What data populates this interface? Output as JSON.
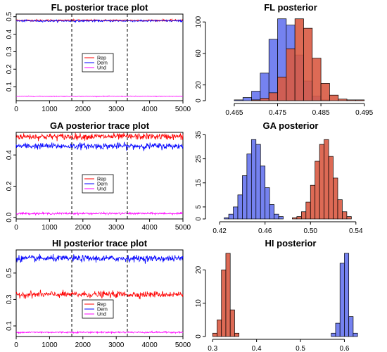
{
  "chart_data": [
    {
      "type": "line",
      "title": "FL posterior trace plot",
      "x_ticks": [
        0,
        1000,
        2000,
        3000,
        4000,
        5000
      ],
      "y_ticks": [
        0.1,
        0.2,
        0.3,
        0.4,
        0.5
      ],
      "xlim": [
        0,
        5000
      ],
      "ylim": [
        0.02,
        0.515
      ],
      "vlines": [
        1667,
        3333
      ],
      "legend": {
        "position": "center",
        "entries": [
          "Rep",
          "Dem",
          "Und"
        ]
      },
      "series": [
        {
          "name": "Rep",
          "color": "#ff0000",
          "mean": 0.479,
          "sd": 0.0025
        },
        {
          "name": "Dem",
          "color": "#0000ff",
          "mean": 0.476,
          "sd": 0.0025
        },
        {
          "name": "Und",
          "color": "#ff00ff",
          "mean": 0.045,
          "sd": 0.001
        }
      ]
    },
    {
      "type": "bar",
      "title": "FL posterior",
      "x_ticks": [
        "0.465",
        "0.475",
        "0.485",
        "0.495"
      ],
      "x_tick_values": [
        0.465,
        0.475,
        0.485,
        0.495
      ],
      "y_ticks": [
        0,
        20,
        60,
        100
      ],
      "xlim": [
        0.459,
        0.497
      ],
      "ylim": [
        0,
        110
      ],
      "series": [
        {
          "name": "Dem",
          "color": "#6674ee",
          "bin_start": 0.465,
          "bin_width": 0.002,
          "counts": [
            1,
            4,
            12,
            35,
            78,
            104,
            96,
            58,
            25,
            6,
            1
          ]
        },
        {
          "name": "Rep",
          "color": "#d95a42",
          "bin_start": 0.469,
          "bin_width": 0.002,
          "counts": [
            1,
            3,
            10,
            30,
            66,
            104,
            92,
            54,
            22,
            7,
            2,
            1,
            1
          ]
        }
      ]
    },
    {
      "type": "line",
      "title": "GA posterior trace plot",
      "x_ticks": [
        0,
        1000,
        2000,
        3000,
        4000,
        5000
      ],
      "y_ticks": [
        0.0,
        0.2,
        0.4
      ],
      "xlim": [
        0,
        5000
      ],
      "ylim": [
        -0.01,
        0.545
      ],
      "vlines": [
        1667,
        3333
      ],
      "legend": {
        "position": "center-right",
        "entries": [
          "Rep",
          "Dem",
          "Und"
        ]
      },
      "series": [
        {
          "name": "Rep",
          "color": "#ff0000",
          "mean": 0.518,
          "sd": 0.01
        },
        {
          "name": "Dem",
          "color": "#0000ff",
          "mean": 0.457,
          "sd": 0.01
        },
        {
          "name": "Und",
          "color": "#ff00ff",
          "mean": 0.025,
          "sd": 0.003
        }
      ]
    },
    {
      "type": "bar",
      "title": "GA posterior",
      "x_ticks": [
        "0.42",
        "0.46",
        "0.50",
        "0.54"
      ],
      "x_tick_values": [
        0.42,
        0.46,
        0.5,
        0.54
      ],
      "y_ticks": [
        0,
        5,
        15,
        25,
        35
      ],
      "xlim": [
        0.41,
        0.555
      ],
      "ylim": [
        0,
        36
      ],
      "series": [
        {
          "name": "Dem",
          "color": "#6674ee",
          "bin_start": 0.424,
          "bin_width": 0.004,
          "counts": [
            0.5,
            2,
            5,
            10,
            18,
            27,
            33,
            31,
            22,
            13,
            6,
            2,
            1
          ]
        },
        {
          "name": "Rep",
          "color": "#d95a42",
          "bin_start": 0.484,
          "bin_width": 0.004,
          "counts": [
            0.5,
            1,
            3,
            7,
            14,
            24,
            31,
            33,
            26,
            17,
            8,
            3,
            1
          ]
        }
      ]
    },
    {
      "type": "line",
      "title": "HI posterior trace plot",
      "x_ticks": [
        0,
        1000,
        2000,
        3000,
        4000,
        5000
      ],
      "y_ticks": [
        0.1,
        0.3,
        0.5
      ],
      "xlim": [
        0,
        5000
      ],
      "ylim": [
        0.02,
        0.675
      ],
      "vlines": [
        1667,
        3333
      ],
      "legend": {
        "position": "bottom-center",
        "entries": [
          "Rep",
          "Dem",
          "Und"
        ]
      },
      "series": [
        {
          "name": "Rep",
          "color": "#ff0000",
          "mean": 0.338,
          "sd": 0.012
        },
        {
          "name": "Dem",
          "color": "#0000ff",
          "mean": 0.61,
          "sd": 0.012
        },
        {
          "name": "Und",
          "color": "#ff00ff",
          "mean": 0.052,
          "sd": 0.003
        }
      ]
    },
    {
      "type": "bar",
      "title": "HI posterior",
      "x_ticks": [
        "0.3",
        "0.4",
        "0.5",
        "0.6"
      ],
      "x_tick_values": [
        0.3,
        0.4,
        0.5,
        0.6
      ],
      "y_ticks": [
        0,
        10,
        20
      ],
      "xlim": [
        0.29,
        0.665
      ],
      "ylim": [
        0,
        26
      ],
      "series": [
        {
          "name": "Rep",
          "color": "#d95a42",
          "bin_start": 0.3,
          "bin_width": 0.01,
          "counts": [
            1,
            5,
            20,
            25,
            8,
            1
          ]
        },
        {
          "name": "Dem",
          "color": "#6674ee",
          "bin_start": 0.57,
          "bin_width": 0.01,
          "counts": [
            1,
            4,
            22,
            25,
            6,
            1
          ]
        }
      ]
    }
  ]
}
